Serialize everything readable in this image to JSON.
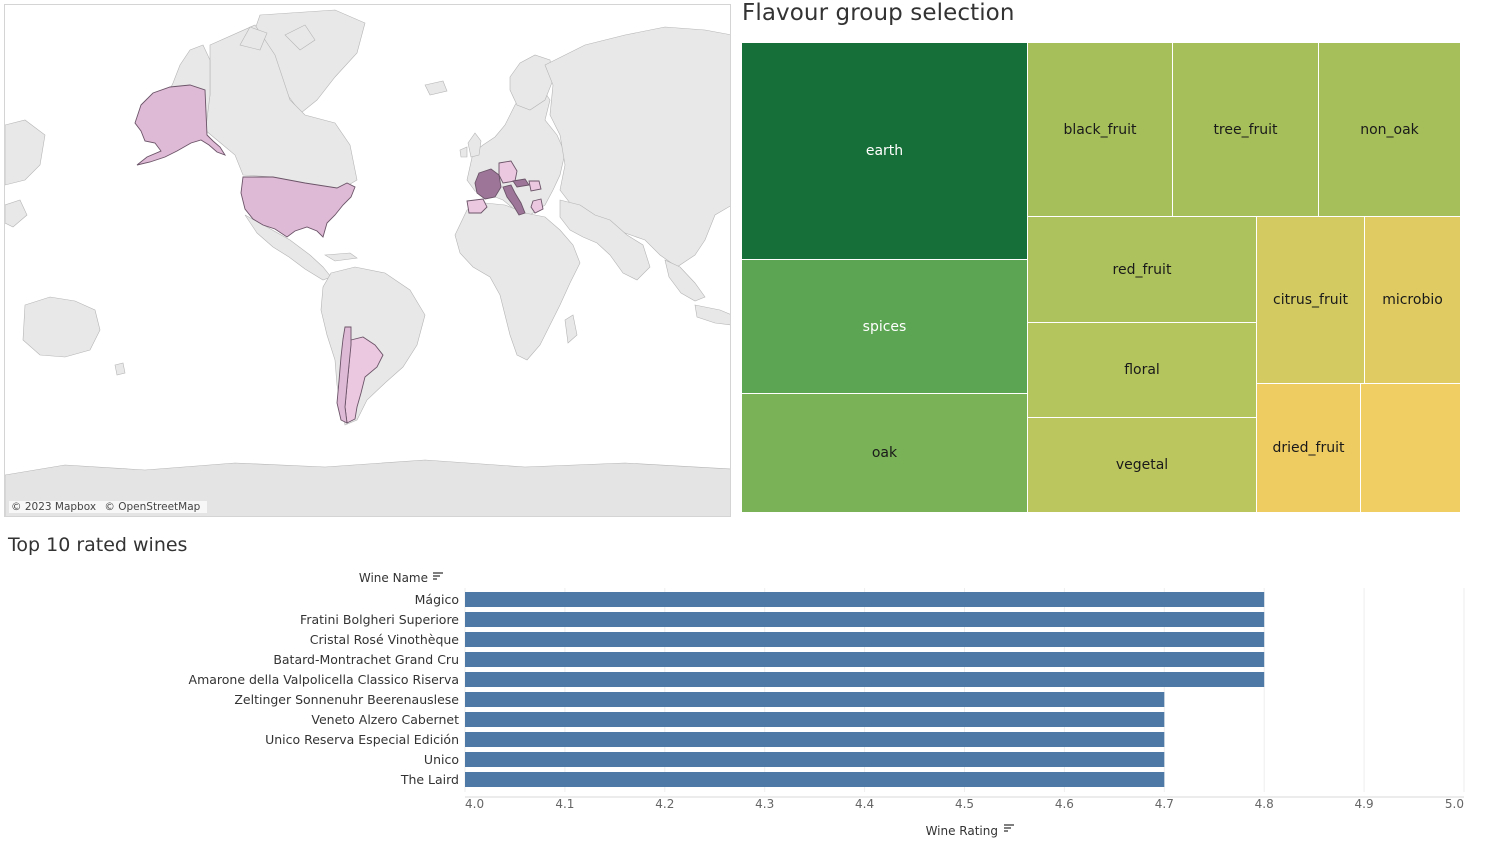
{
  "map": {
    "attribution": [
      "© 2023 Mapbox",
      "© OpenStreetMap"
    ],
    "colors": {
      "ocean": "#ffffff",
      "land": "#e8e8e8",
      "land_dark": "#dcdcdc",
      "border": "#9e9e9e",
      "highlight": "#dfbad6",
      "highlight_light": "#ecc8e0",
      "highlight_dark": "#9d7599",
      "highlight_border": "#6b5468"
    },
    "highlighted_regions": [
      "United States",
      "France",
      "Italy",
      "Germany",
      "Spain",
      "Austria",
      "Hungary",
      "Greece",
      "Argentina",
      "Chile"
    ]
  },
  "treemap": {
    "title": "Flavour group selection",
    "tiles": [
      {
        "label": "earth",
        "color": "#166f38",
        "text_color": "#ffffff"
      },
      {
        "label": "spices",
        "color": "#5ca553",
        "text_color": "#ffffff"
      },
      {
        "label": "oak",
        "color": "#79b257",
        "text_color": "#1a1a1a"
      },
      {
        "label": "black_fruit",
        "color": "#a6bf5b",
        "text_color": "#1a1a1a"
      },
      {
        "label": "tree_fruit",
        "color": "#a6bf5b",
        "text_color": "#1a1a1a"
      },
      {
        "label": "non_oak",
        "color": "#a6bf5b",
        "text_color": "#1a1a1a"
      },
      {
        "label": "red_fruit",
        "color": "#adc25c",
        "text_color": "#1a1a1a"
      },
      {
        "label": "floral",
        "color": "#b4c55d",
        "text_color": "#1a1a1a"
      },
      {
        "label": "vegetal",
        "color": "#bcc65e",
        "text_color": "#1a1a1a"
      },
      {
        "label": "citrus_fruit",
        "color": "#d3ca62",
        "text_color": "#1a1a1a"
      },
      {
        "label": "microbio",
        "color": "#dfcb61",
        "text_color": "#1a1a1a"
      },
      {
        "label": "dried_fruit",
        "color": "#efcc62",
        "text_color": "#1a1a1a"
      },
      {
        "label": "",
        "color": "#f1ce64",
        "text_color": "#1a1a1a"
      }
    ]
  },
  "chart_data": {
    "type": "bar",
    "title": "Top 10 rated wines",
    "ylabel": "Wine Name",
    "xlabel": "Wine Rating",
    "categories": [
      "Mágico",
      "Fratini Bolgheri Superiore",
      "Cristal Rosé Vinothèque",
      "Batard-Montrachet Grand Cru",
      "Amarone della Valpolicella Classico Riserva",
      "Zeltinger Sonnenuhr Beerenauslese",
      "Veneto Alzero Cabernet",
      "Unico Reserva Especial Edición",
      "Unico",
      "The Laird"
    ],
    "values": [
      4.8,
      4.8,
      4.8,
      4.8,
      4.8,
      4.7,
      4.7,
      4.7,
      4.7,
      4.7
    ],
    "xlim": [
      4.0,
      5.0
    ],
    "ticks": [
      "4.0",
      "4.1",
      "4.2",
      "4.3",
      "4.4",
      "4.5",
      "4.6",
      "4.7",
      "4.8",
      "4.9",
      "5.0"
    ],
    "bar_color": "#4e79a7",
    "orientation": "horizontal",
    "grid": true
  }
}
